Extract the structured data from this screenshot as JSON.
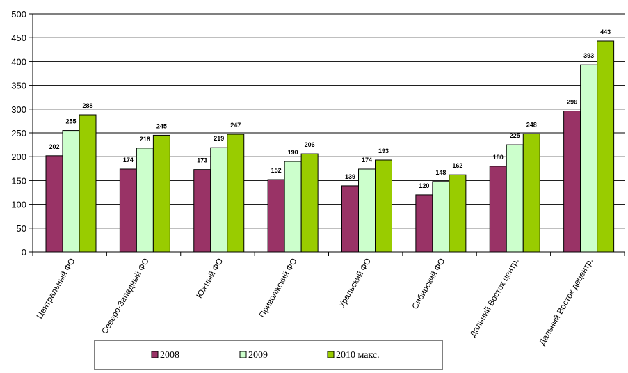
{
  "chart_data": {
    "type": "bar",
    "categories": [
      "Центральный ФО",
      "Северо-Западный ФО",
      "Южный ФО",
      "Приволжский ФО",
      "Уральский ФО",
      "Сибирский ФО",
      "Дальний Восток центр.",
      "Дальний Восток децентр."
    ],
    "series": [
      {
        "name": "2008",
        "values": [
          202,
          174,
          173,
          152,
          139,
          120,
          180,
          296
        ],
        "color": "#993366"
      },
      {
        "name": "2009",
        "values": [
          255,
          218,
          219,
          190,
          174,
          148,
          225,
          393
        ],
        "color": "#ccffcc"
      },
      {
        "name": "2010 макс.",
        "values": [
          288,
          245,
          247,
          206,
          193,
          162,
          248,
          443
        ],
        "color": "#99cc00"
      }
    ],
    "ylim": [
      0,
      500
    ],
    "yticks": [
      0,
      50,
      100,
      150,
      200,
      250,
      300,
      350,
      400,
      450,
      500
    ],
    "grid": true,
    "legend": "bottom",
    "data_labels": true
  }
}
